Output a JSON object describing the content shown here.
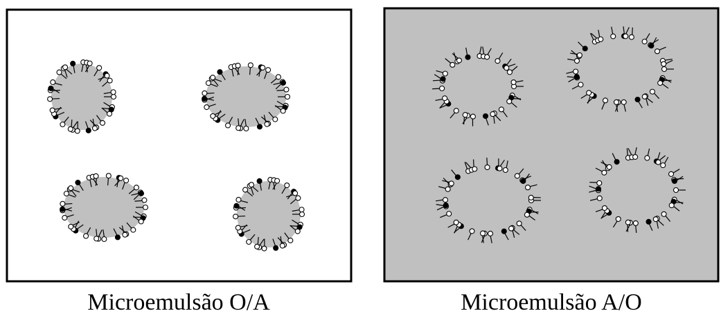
{
  "panels": [
    {
      "caption": "Microemulsão O/A"
    },
    {
      "caption": "Microemulsão A/O"
    }
  ]
}
